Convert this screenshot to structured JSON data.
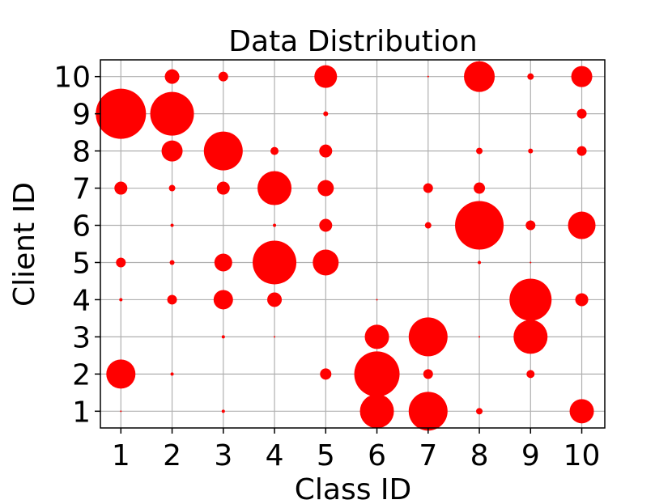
{
  "chart_data": {
    "type": "scatter",
    "title": "Data Distribution",
    "xlabel": "Class ID",
    "ylabel": "Client ID",
    "xticks": [
      1,
      2,
      3,
      4,
      5,
      6,
      7,
      8,
      9,
      10
    ],
    "yticks": [
      1,
      2,
      3,
      4,
      5,
      6,
      7,
      8,
      9,
      10
    ],
    "xlim": [
      0.6,
      10.45
    ],
    "ylim": [
      0.55,
      10.45
    ],
    "grid": true,
    "marker_color": "#ff0000",
    "size_note": "bubble radius proportional to sample count (relative units)",
    "points": [
      {
        "x": 1,
        "y": 10,
        "r": 0
      },
      {
        "x": 2,
        "y": 10,
        "r": 9
      },
      {
        "x": 3,
        "y": 10,
        "r": 6
      },
      {
        "x": 4,
        "y": 10,
        "r": 0
      },
      {
        "x": 5,
        "y": 10,
        "r": 14
      },
      {
        "x": 6,
        "y": 10,
        "r": 0
      },
      {
        "x": 7,
        "y": 10,
        "r": 1
      },
      {
        "x": 8,
        "y": 10,
        "r": 19
      },
      {
        "x": 9,
        "y": 10,
        "r": 4
      },
      {
        "x": 10,
        "y": 10,
        "r": 13
      },
      {
        "x": 1,
        "y": 9,
        "r": 31
      },
      {
        "x": 2,
        "y": 9,
        "r": 27
      },
      {
        "x": 3,
        "y": 9,
        "r": 0
      },
      {
        "x": 4,
        "y": 9,
        "r": 0
      },
      {
        "x": 5,
        "y": 9,
        "r": 3
      },
      {
        "x": 6,
        "y": 9,
        "r": 0
      },
      {
        "x": 7,
        "y": 9,
        "r": 0
      },
      {
        "x": 8,
        "y": 9,
        "r": 0
      },
      {
        "x": 9,
        "y": 9,
        "r": 0
      },
      {
        "x": 10,
        "y": 9,
        "r": 6
      },
      {
        "x": 1,
        "y": 8,
        "r": 0
      },
      {
        "x": 2,
        "y": 8,
        "r": 13
      },
      {
        "x": 3,
        "y": 8,
        "r": 24
      },
      {
        "x": 4,
        "y": 8,
        "r": 5
      },
      {
        "x": 5,
        "y": 8,
        "r": 8
      },
      {
        "x": 6,
        "y": 8,
        "r": 0
      },
      {
        "x": 7,
        "y": 8,
        "r": 0
      },
      {
        "x": 8,
        "y": 8,
        "r": 4
      },
      {
        "x": 9,
        "y": 8,
        "r": 3
      },
      {
        "x": 10,
        "y": 8,
        "r": 6
      },
      {
        "x": 1,
        "y": 7,
        "r": 8
      },
      {
        "x": 2,
        "y": 7,
        "r": 4
      },
      {
        "x": 3,
        "y": 7,
        "r": 8
      },
      {
        "x": 4,
        "y": 7,
        "r": 21
      },
      {
        "x": 5,
        "y": 7,
        "r": 10
      },
      {
        "x": 6,
        "y": 7,
        "r": 0
      },
      {
        "x": 7,
        "y": 7,
        "r": 6
      },
      {
        "x": 8,
        "y": 7,
        "r": 7
      },
      {
        "x": 9,
        "y": 7,
        "r": 0
      },
      {
        "x": 10,
        "y": 7,
        "r": 0
      },
      {
        "x": 1,
        "y": 6,
        "r": 0
      },
      {
        "x": 2,
        "y": 6,
        "r": 2
      },
      {
        "x": 3,
        "y": 6,
        "r": 0
      },
      {
        "x": 4,
        "y": 6,
        "r": 2
      },
      {
        "x": 5,
        "y": 6,
        "r": 8
      },
      {
        "x": 6,
        "y": 6,
        "r": 0
      },
      {
        "x": 7,
        "y": 6,
        "r": 4
      },
      {
        "x": 8,
        "y": 6,
        "r": 30
      },
      {
        "x": 9,
        "y": 6,
        "r": 6
      },
      {
        "x": 10,
        "y": 6,
        "r": 17
      },
      {
        "x": 1,
        "y": 5,
        "r": 6
      },
      {
        "x": 2,
        "y": 5,
        "r": 3
      },
      {
        "x": 3,
        "y": 5,
        "r": 11
      },
      {
        "x": 4,
        "y": 5,
        "r": 27
      },
      {
        "x": 5,
        "y": 5,
        "r": 16
      },
      {
        "x": 6,
        "y": 5,
        "r": 0
      },
      {
        "x": 7,
        "y": 5,
        "r": 0
      },
      {
        "x": 8,
        "y": 5,
        "r": 2
      },
      {
        "x": 9,
        "y": 5,
        "r": 1
      },
      {
        "x": 10,
        "y": 5,
        "r": 0
      },
      {
        "x": 1,
        "y": 4,
        "r": 2
      },
      {
        "x": 2,
        "y": 4,
        "r": 6
      },
      {
        "x": 3,
        "y": 4,
        "r": 12
      },
      {
        "x": 4,
        "y": 4,
        "r": 9
      },
      {
        "x": 5,
        "y": 4,
        "r": 0
      },
      {
        "x": 6,
        "y": 4,
        "r": 1
      },
      {
        "x": 7,
        "y": 4,
        "r": 0
      },
      {
        "x": 8,
        "y": 4,
        "r": 0
      },
      {
        "x": 9,
        "y": 4,
        "r": 26
      },
      {
        "x": 10,
        "y": 4,
        "r": 8
      },
      {
        "x": 1,
        "y": 3,
        "r": 0
      },
      {
        "x": 2,
        "y": 3,
        "r": 0
      },
      {
        "x": 3,
        "y": 3,
        "r": 2
      },
      {
        "x": 4,
        "y": 3,
        "r": 1
      },
      {
        "x": 5,
        "y": 3,
        "r": 0
      },
      {
        "x": 6,
        "y": 3,
        "r": 15
      },
      {
        "x": 7,
        "y": 3,
        "r": 24
      },
      {
        "x": 8,
        "y": 3,
        "r": 1
      },
      {
        "x": 9,
        "y": 3,
        "r": 21
      },
      {
        "x": 10,
        "y": 3,
        "r": 0
      },
      {
        "x": 1,
        "y": 2,
        "r": 18
      },
      {
        "x": 2,
        "y": 2,
        "r": 2
      },
      {
        "x": 3,
        "y": 2,
        "r": 0
      },
      {
        "x": 4,
        "y": 2,
        "r": 0
      },
      {
        "x": 5,
        "y": 2,
        "r": 7
      },
      {
        "x": 6,
        "y": 2,
        "r": 28
      },
      {
        "x": 7,
        "y": 2,
        "r": 6
      },
      {
        "x": 8,
        "y": 2,
        "r": 0
      },
      {
        "x": 9,
        "y": 2,
        "r": 5
      },
      {
        "x": 10,
        "y": 2,
        "r": 0
      },
      {
        "x": 1,
        "y": 1,
        "r": 1
      },
      {
        "x": 2,
        "y": 1,
        "r": 0
      },
      {
        "x": 3,
        "y": 1,
        "r": 2
      },
      {
        "x": 4,
        "y": 1,
        "r": 0
      },
      {
        "x": 5,
        "y": 1,
        "r": 0
      },
      {
        "x": 6,
        "y": 1,
        "r": 21
      },
      {
        "x": 7,
        "y": 1,
        "r": 24
      },
      {
        "x": 8,
        "y": 1,
        "r": 4
      },
      {
        "x": 9,
        "y": 1,
        "r": 0
      },
      {
        "x": 10,
        "y": 1,
        "r": 15
      }
    ]
  }
}
